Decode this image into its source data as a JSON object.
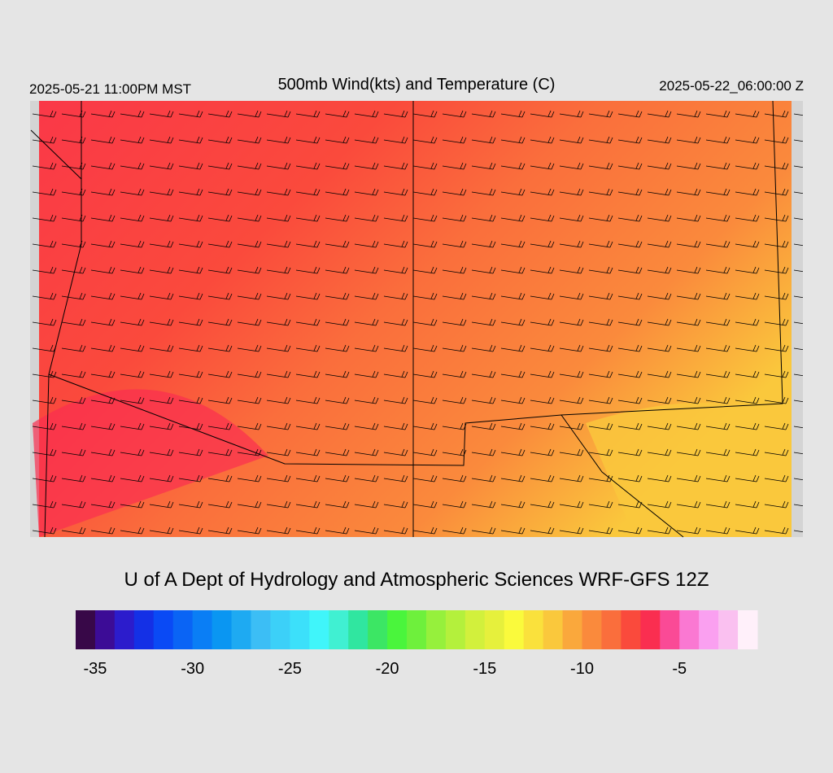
{
  "header": {
    "local_time": "2025-05-21 11:00PM MST",
    "title": "500mb Wind(kts) and Temperature (C)",
    "valid_time": "2025-05-22_06:00:00 Z"
  },
  "credit": "U of A Dept of Hydrology and Atmospheric Sciences WRF-GFS 12Z",
  "colorbar": {
    "range": [
      -36,
      -1
    ],
    "ticks": [
      -35,
      -30,
      -25,
      -20,
      -15,
      -10,
      -5
    ],
    "colors": [
      "#380848",
      "#3c0c96",
      "#2c1ccc",
      "#1430e6",
      "#0a4af5",
      "#0a64f5",
      "#0a7ef5",
      "#0a96f2",
      "#1eaaf2",
      "#3cbef5",
      "#3cd0f8",
      "#3ce0fa",
      "#40f5fa",
      "#40f0d2",
      "#30e6a0",
      "#3ce664",
      "#4af53c",
      "#6ef03c",
      "#96f03c",
      "#b4f03c",
      "#d2f03c",
      "#e6f03c",
      "#fafa3c",
      "#fae13c",
      "#fac83c",
      "#faa83c",
      "#fa8a3c",
      "#fa6e3c",
      "#fa4a3c",
      "#fa2e50",
      "#fa4a96",
      "#fa78d2",
      "#faa0f0",
      "#fac0f0",
      "#fff0fa"
    ]
  }
}
